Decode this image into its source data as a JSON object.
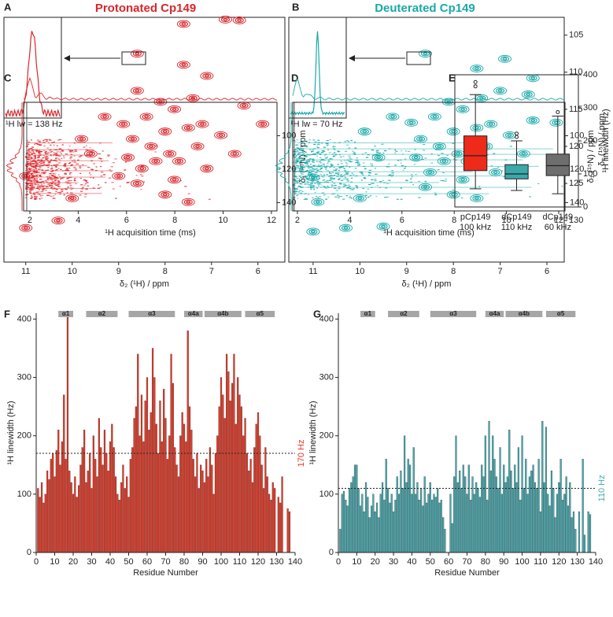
{
  "chart_data": [
    {
      "type": "spectrum",
      "panel": "A",
      "title": "Protonated Cp149",
      "color": "#d9262b",
      "xlabel": "δ₂ (¹H) / ppm",
      "inset_label": "¹H lw = 138 Hz",
      "xlim": [
        11.47,
        5.42
      ],
      "ylim": [
        135.6,
        102.6
      ],
      "xticks": [
        11,
        10,
        9,
        8,
        7,
        6
      ],
      "x": [
        6.4,
        6.7,
        7.6,
        8.6,
        11.0,
        11.0,
        10.3,
        10.0,
        9.0,
        8.5,
        8.2,
        7.9,
        8.3,
        8.7,
        8.0,
        7.5,
        7.2,
        8.9,
        9.3,
        8.4,
        7.8,
        8.1,
        7.4,
        8.6,
        7.1,
        7.6,
        6.3,
        5.9,
        6.5,
        7.1,
        7.8,
        8.6,
        9.6,
        9.8,
        8.0,
        7.5,
        6.8,
        8.8,
        7.3,
        7.7
      ],
      "y": [
        103,
        102.9,
        103.5,
        107.5,
        124,
        131,
        130,
        127,
        124,
        123,
        122,
        121,
        120,
        119,
        118,
        117.5,
        117,
        117,
        116,
        116,
        115,
        114,
        113.5,
        112.5,
        110.5,
        109,
        114.5,
        117,
        121,
        123,
        124.5,
        125,
        121,
        119,
        126.5,
        127.5,
        118.5,
        121.5,
        120,
        122
      ]
    },
    {
      "type": "spectrum",
      "panel": "B",
      "title": "Deuterated Cp149",
      "color": "#1aa9a9",
      "xlabel": "δ₂ (¹H) / ppm",
      "ylabel": "δ₁ (¹⁵N) / ppm",
      "inset_label": "¹H lw = 70 Hz",
      "xlim": [
        11.52,
        5.63
      ],
      "ylim": [
        135.6,
        102.6
      ],
      "xticks": [
        11,
        10,
        9,
        8,
        7,
        6
      ],
      "yticks": [
        105,
        110,
        115,
        120,
        125,
        130
      ],
      "x": [
        6.3,
        6.9,
        7.5,
        8.6,
        11.0,
        11.0,
        10.3,
        10.0,
        9.5,
        10.9,
        8.5,
        8.2,
        7.9,
        8.3,
        8.7,
        8.0,
        7.5,
        7.2,
        8.9,
        9.3,
        8.4,
        7.8,
        8.1,
        7.4,
        7.0,
        6.4,
        6.3,
        5.8,
        6.5,
        7.1,
        7.8,
        8.6,
        9.6,
        9.9,
        8.0,
        7.5,
        6.8,
        8.8,
        7.3,
        7.7
      ],
      "y": [
        110.8,
        108.2,
        109.5,
        107.5,
        124.2,
        131.5,
        131,
        127,
        130.8,
        127.5,
        123.5,
        122,
        121,
        120,
        119,
        118,
        117.5,
        117,
        116.8,
        116,
        116,
        115,
        114,
        113.5,
        112.5,
        113,
        116.5,
        116.8,
        121,
        123.5,
        124.5,
        125.5,
        121.5,
        118,
        126.5,
        127,
        118.5,
        121.5,
        120,
        122
      ]
    },
    {
      "type": "fid",
      "panel": "C",
      "color": "#e0262b",
      "xlabel": "¹H acquisition time (ms)",
      "ylabel": "δ₁ (¹⁵N) / ppm",
      "xlim": [
        1.74,
        12.23
      ],
      "ylim": [
        145,
        80
      ],
      "xticks": [
        2,
        4,
        6,
        8,
        10,
        12
      ],
      "yticks": [
        100,
        120,
        140
      ]
    },
    {
      "type": "fid",
      "panel": "D",
      "color": "#1aa9a9",
      "xlabel": "¹H acquisition time (ms)",
      "ylabel": "δ₁ (¹⁵N) / ppm",
      "xlim": [
        1.82,
        12.24
      ],
      "ylim": [
        145,
        80
      ],
      "xticks": [
        2,
        4,
        6,
        8,
        10,
        12
      ],
      "yticks": [
        100,
        120,
        140
      ]
    },
    {
      "type": "box",
      "panel": "E",
      "ylabel": "¹H linewidth (Hz)",
      "ylim": [
        0,
        400
      ],
      "yticks": [
        0,
        100,
        200,
        300,
        400
      ],
      "categories": [
        "pCp149",
        "dCp149",
        "dCp149"
      ],
      "subcategories": [
        "100 kHz",
        "110 kHz",
        "60 kHz"
      ],
      "colors": [
        "#ee2a1a",
        "#3aa9aa",
        "#6e6e6e"
      ],
      "values": [
        {
          "min": 55,
          "q1": 110,
          "median": 155,
          "q3": 215,
          "max": 340,
          "outliers": [
            365,
            378
          ]
        },
        {
          "min": 50,
          "q1": 85,
          "median": 100,
          "q3": 128,
          "max": 200,
          "outliers": [
            212,
            222
          ]
        },
        {
          "min": 40,
          "q1": 95,
          "median": 125,
          "q3": 160,
          "max": 275,
          "outliers": [
            287
          ]
        }
      ]
    },
    {
      "type": "bar",
      "panel": "F",
      "color": "#e8331f",
      "xlabel": "Residue Number",
      "ylabel": "¹H linewidth (Hz)",
      "xlim": [
        0,
        140
      ],
      "ylim": [
        0,
        410
      ],
      "xticks": [
        0,
        10,
        20,
        30,
        40,
        50,
        60,
        70,
        80,
        90,
        100,
        110,
        120,
        130,
        140
      ],
      "yticks": [
        0,
        100,
        200,
        300,
        400
      ],
      "reference": 170,
      "reference_label": "170 Hz",
      "helices": [
        {
          "label": "α1",
          "start": 12,
          "end": 20
        },
        {
          "label": "α2",
          "start": 27,
          "end": 44
        },
        {
          "label": "α3",
          "start": 50,
          "end": 75
        },
        {
          "label": "α4a",
          "start": 80,
          "end": 90
        },
        {
          "label": "α4b",
          "start": 91,
          "end": 111
        },
        {
          "label": "α5",
          "start": 113,
          "end": 129
        }
      ],
      "x": [
        1,
        2,
        3,
        4,
        5,
        6,
        7,
        8,
        9,
        10,
        11,
        12,
        13,
        14,
        15,
        16,
        17,
        18,
        19,
        20,
        21,
        22,
        23,
        24,
        25,
        26,
        27,
        28,
        29,
        30,
        31,
        32,
        33,
        34,
        35,
        36,
        37,
        38,
        39,
        40,
        41,
        42,
        43,
        44,
        45,
        46,
        47,
        48,
        49,
        50,
        51,
        52,
        53,
        54,
        55,
        56,
        57,
        58,
        59,
        60,
        61,
        62,
        63,
        64,
        65,
        66,
        67,
        68,
        69,
        70,
        71,
        72,
        73,
        74,
        75,
        76,
        77,
        78,
        79,
        80,
        81,
        82,
        83,
        84,
        85,
        86,
        87,
        88,
        89,
        90,
        91,
        92,
        93,
        94,
        95,
        96,
        97,
        98,
        99,
        100,
        101,
        102,
        103,
        104,
        105,
        106,
        107,
        108,
        109,
        110,
        111,
        112,
        113,
        114,
        115,
        116,
        117,
        118,
        119,
        120,
        121,
        122,
        123,
        124,
        125,
        126,
        127,
        128,
        129,
        130,
        131,
        132,
        133,
        134,
        135,
        136,
        137,
        138
      ],
      "values": [
        110,
        95,
        120,
        85,
        100,
        140,
        125,
        160,
        170,
        130,
        175,
        210,
        150,
        190,
        270,
        160,
        405,
        140,
        120,
        100,
        130,
        95,
        115,
        150,
        180,
        210,
        120,
        140,
        170,
        110,
        200,
        160,
        130,
        230,
        180,
        150,
        210,
        170,
        140,
        190,
        220,
        180,
        130,
        100,
        90,
        120,
        150,
        110,
        130,
        95,
        160,
        180,
        230,
        250,
        340,
        200,
        270,
        190,
        260,
        300,
        210,
        240,
        350,
        300,
        220,
        170,
        260,
        190,
        280,
        230,
        160,
        200,
        340,
        290,
        180,
        150,
        130,
        200,
        240,
        220,
        190,
        380,
        250,
        210,
        160,
        130,
        170,
        110,
        150,
        140,
        120,
        160,
        130,
        180,
        150,
        100,
        170,
        200,
        250,
        300,
        270,
        230,
        340,
        310,
        260,
        290,
        340,
        220,
        300,
        270,
        250,
        200,
        230,
        170,
        140,
        160,
        120,
        180,
        220,
        240,
        200,
        150,
        110,
        180,
        130,
        100,
        90,
        120,
        110,
        null,
        95,
        85,
        130,
        null,
        null,
        75,
        70,
        null
      ]
    },
    {
      "type": "bar",
      "panel": "G",
      "color": "#45aab0",
      "xlabel": "Residue Number",
      "ylabel": "¹H linewidth (Hz)",
      "xlim": [
        0,
        140
      ],
      "ylim": [
        0,
        410
      ],
      "xticks": [
        0,
        10,
        20,
        30,
        40,
        50,
        60,
        70,
        80,
        90,
        100,
        110,
        120,
        130,
        140
      ],
      "yticks": [
        0,
        100,
        200,
        300,
        400
      ],
      "reference": 110,
      "reference_label": "110 Hz",
      "helices": [
        {
          "label": "α1",
          "start": 12,
          "end": 20
        },
        {
          "label": "α2",
          "start": 27,
          "end": 44
        },
        {
          "label": "α3",
          "start": 50,
          "end": 75
        },
        {
          "label": "α4a",
          "start": 80,
          "end": 90
        },
        {
          "label": "α4b",
          "start": 91,
          "end": 111
        },
        {
          "label": "α5",
          "start": 113,
          "end": 129
        }
      ],
      "x": [
        1,
        2,
        3,
        4,
        5,
        6,
        7,
        8,
        9,
        10,
        11,
        12,
        13,
        14,
        15,
        16,
        17,
        18,
        19,
        20,
        21,
        22,
        23,
        24,
        25,
        26,
        27,
        28,
        29,
        30,
        31,
        32,
        33,
        34,
        35,
        36,
        37,
        38,
        39,
        40,
        41,
        42,
        43,
        44,
        45,
        46,
        47,
        48,
        49,
        50,
        51,
        52,
        53,
        54,
        55,
        56,
        57,
        58,
        59,
        60,
        61,
        62,
        63,
        64,
        65,
        66,
        67,
        68,
        69,
        70,
        71,
        72,
        73,
        74,
        75,
        76,
        77,
        78,
        79,
        80,
        81,
        82,
        83,
        84,
        85,
        86,
        87,
        88,
        89,
        90,
        91,
        92,
        93,
        94,
        95,
        96,
        97,
        98,
        99,
        100,
        101,
        102,
        103,
        104,
        105,
        106,
        107,
        108,
        109,
        110,
        111,
        112,
        113,
        114,
        115,
        116,
        117,
        118,
        119,
        120,
        121,
        122,
        123,
        124,
        125,
        126,
        127,
        128,
        129,
        130,
        131,
        132,
        133,
        134,
        135,
        136,
        137,
        138
      ],
      "values": [
        40,
        100,
        105,
        90,
        80,
        110,
        120,
        130,
        150,
        150,
        110,
        80,
        100,
        70,
        120,
        95,
        60,
        80,
        100,
        70,
        85,
        60,
        100,
        120,
        90,
        160,
        110,
        85,
        100,
        70,
        90,
        130,
        100,
        140,
        110,
        200,
        120,
        160,
        150,
        100,
        180,
        100,
        120,
        90,
        110,
        80,
        130,
        85,
        100,
        120,
        90,
        100,
        95,
        110,
        85,
        90,
        60,
        40,
        null,
        null,
        100,
        50,
        130,
        200,
        120,
        140,
        110,
        150,
        130,
        100,
        150,
        90,
        130,
        100,
        120,
        110,
        95,
        150,
        130,
        200,
        90,
        225,
        140,
        200,
        160,
        130,
        110,
        180,
        100,
        150,
        120,
        130,
        210,
        140,
        110,
        150,
        120,
        180,
        90,
        200,
        110,
        160,
        100,
        130,
        140,
        150,
        120,
        110,
        160,
        70,
        225,
        120,
        215,
        100,
        80,
        140,
        110,
        60,
        100,
        120,
        160,
        90,
        100,
        130,
        80,
        120,
        60,
        70,
        40,
        null,
        70,
        null,
        160,
        30,
        null,
        70,
        65,
        null
      ]
    }
  ]
}
